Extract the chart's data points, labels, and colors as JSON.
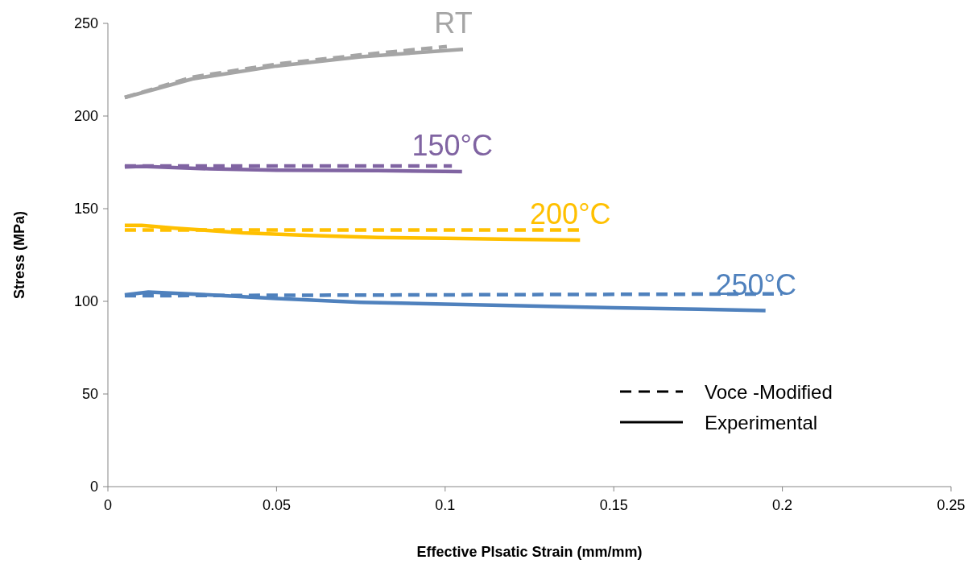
{
  "chart_data": {
    "type": "line",
    "xlabel": "Effective Plsatic Strain (mm/mm)",
    "ylabel": "Stress (MPa)",
    "xlim": [
      0,
      0.25
    ],
    "xticks": [
      0,
      0.05,
      0.1,
      0.15,
      0.2,
      0.25
    ],
    "ylim": [
      0,
      250
    ],
    "yticks": [
      0,
      50,
      100,
      150,
      200,
      250
    ],
    "grid": false,
    "marker": "none",
    "series": [
      {
        "color": "#a5a5a5",
        "line_style": "dashed",
        "x": [
          0.005,
          0.025,
          0.05,
          0.075,
          0.1005
        ],
        "values": [
          210,
          221,
          228,
          233,
          237.5
        ]
      },
      {
        "name": "RT",
        "color": "#a5a5a5",
        "line_style": "solid",
        "x": [
          0.005,
          0.025,
          0.05,
          0.075,
          0.1053
        ],
        "values": [
          210,
          220,
          227,
          232,
          236
        ]
      },
      {
        "color": "#8064a2",
        "line_style": "dashed",
        "x": [
          0.005,
          0.05,
          0.102
        ],
        "values": [
          173,
          173,
          173
        ]
      },
      {
        "name": "150°C",
        "color": "#8064a2",
        "line_style": "solid",
        "x": [
          0.005,
          0.01,
          0.03,
          0.05,
          0.08,
          0.105
        ],
        "values": [
          172.5,
          172.8,
          171.5,
          170.8,
          170.5,
          170
        ]
      },
      {
        "color": "#ffc000",
        "line_style": "dashed",
        "x": [
          0.005,
          0.07,
          0.14
        ],
        "values": [
          138.5,
          138.5,
          138.5
        ]
      },
      {
        "name": "200°C",
        "color": "#ffc000",
        "line_style": "solid",
        "x": [
          0.005,
          0.01,
          0.02,
          0.04,
          0.06,
          0.08,
          0.1,
          0.12,
          0.14
        ],
        "values": [
          141,
          141,
          139.5,
          137,
          135.5,
          134.5,
          134,
          133.5,
          133
        ]
      },
      {
        "color": "#4f81bd",
        "line_style": "dashed",
        "x": [
          0.005,
          0.1,
          0.2
        ],
        "values": [
          103,
          103.5,
          104
        ]
      },
      {
        "name": "250°C",
        "color": "#4f81bd",
        "line_style": "solid",
        "x": [
          0.005,
          0.012,
          0.03,
          0.05,
          0.075,
          0.1,
          0.125,
          0.15,
          0.175,
          0.195
        ],
        "values": [
          103.5,
          105,
          103.5,
          101.5,
          99.5,
          98.5,
          97.5,
          96.5,
          95.8,
          95
        ]
      }
    ],
    "annotations": [
      "Voce -Modified",
      "Experimental"
    ]
  }
}
